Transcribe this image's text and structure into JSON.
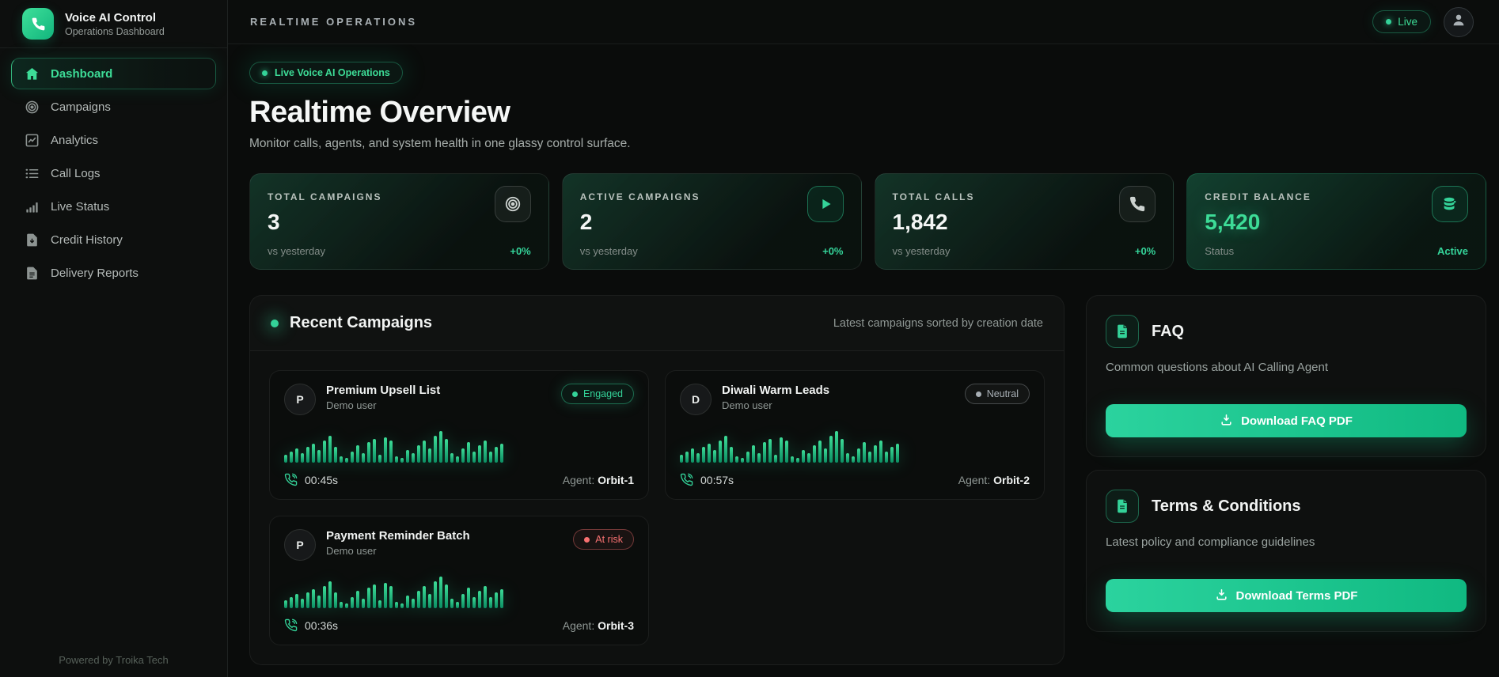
{
  "accent_colors": {
    "green": "#34d399",
    "green_deep": "#10b981",
    "risk_red": "#f87171",
    "neutral_gray": "#a8afb5"
  },
  "sidebar": {
    "brand": {
      "icon": "phone-icon",
      "title": "Voice AI Control",
      "subtitle": "Operations Dashboard"
    },
    "items": [
      {
        "label": "Dashboard",
        "icon": "home-icon",
        "state": "active"
      },
      {
        "label": "Campaigns",
        "icon": "target-icon",
        "state": "idle"
      },
      {
        "label": "Analytics",
        "icon": "analytics-icon",
        "state": "idle"
      },
      {
        "label": "Call Logs",
        "icon": "list-icon",
        "state": "idle"
      },
      {
        "label": "Live Status",
        "icon": "signal-icon",
        "state": "idle"
      },
      {
        "label": "Credit History",
        "icon": "file-down-icon",
        "state": "idle"
      },
      {
        "label": "Delivery Reports",
        "icon": "file-text-icon",
        "state": "idle"
      }
    ],
    "footer": "Powered by Troika Tech"
  },
  "topbar": {
    "title": "REALTIME OPERATIONS",
    "live_label": "Live",
    "avatar_icon": "user-icon"
  },
  "hero": {
    "badge": "Live Voice AI Operations",
    "title": "Realtime Overview",
    "subtitle": "Monitor calls, agents, and system health in one glassy control surface."
  },
  "stats": [
    {
      "label": "TOTAL CAMPAIGNS",
      "value": "3",
      "footer_left": "vs yesterday",
      "footer_right": "+0%",
      "icon": "target-icon",
      "icon_variant": "box-gray",
      "variant": "plain"
    },
    {
      "label": "ACTIVE CAMPAIGNS",
      "value": "2",
      "footer_left": "vs yesterday",
      "footer_right": "+0%",
      "icon": "play-icon",
      "icon_variant": "box-green",
      "variant": "plain"
    },
    {
      "label": "TOTAL CALLS",
      "value": "1,842",
      "footer_left": "vs yesterday",
      "footer_right": "+0%",
      "icon": "phone-icon",
      "icon_variant": "box-gray",
      "variant": "plain"
    },
    {
      "label": "CREDIT BALANCE",
      "value": "5,420",
      "footer_left": "Status",
      "footer_right": "Active",
      "icon": "coins-icon",
      "icon_variant": "box-green",
      "variant": "accent"
    }
  ],
  "recent": {
    "title": "Recent Campaigns",
    "subtitle": "Latest campaigns sorted by creation date",
    "call_icon": "phone-call-icon",
    "waveform": [
      10,
      14,
      18,
      12,
      20,
      24,
      16,
      28,
      34,
      20,
      8,
      6,
      14,
      22,
      12,
      26,
      30,
      10,
      32,
      28,
      8,
      6,
      16,
      12,
      22,
      28,
      18,
      34,
      40,
      30,
      12,
      8,
      18,
      26,
      14,
      22,
      28,
      14,
      20,
      24
    ],
    "cards": [
      {
        "initial": "P",
        "name": "Premium Upsell List",
        "owner": "Demo user",
        "status": "Engaged",
        "status_type": "engaged",
        "duration": "00:45s",
        "agent_label": "Agent:",
        "agent": "Orbit-1"
      },
      {
        "initial": "D",
        "name": "Diwali Warm Leads",
        "owner": "Demo user",
        "status": "Neutral",
        "status_type": "neutral",
        "duration": "00:57s",
        "agent_label": "Agent:",
        "agent": "Orbit-2"
      },
      {
        "initial": "P",
        "name": "Payment Reminder Batch",
        "owner": "Demo user",
        "status": "At risk",
        "status_type": "atrisk",
        "duration": "00:36s",
        "agent_label": "Agent:",
        "agent": "Orbit-3"
      }
    ]
  },
  "resources": [
    {
      "icon": "doc-icon",
      "title": "FAQ",
      "description": "Common questions about AI Calling Agent",
      "button": "Download FAQ PDF",
      "button_icon": "download-icon"
    },
    {
      "icon": "doc-icon",
      "title": "Terms & Conditions",
      "description": "Latest policy and compliance guidelines",
      "button": "Download Terms PDF",
      "button_icon": "download-icon"
    }
  ]
}
